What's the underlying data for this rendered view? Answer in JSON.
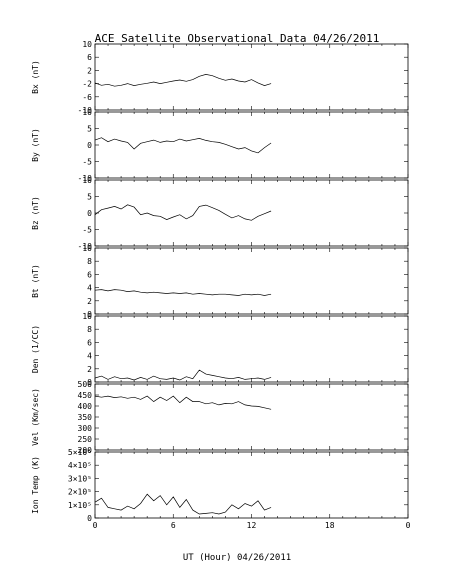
{
  "chart_data": {
    "type": "line",
    "title": "ACE Satellite Observational Data   04/26/2011",
    "xlabel": "UT (Hour)  04/26/2011",
    "x_ticks": [
      "0",
      "6",
      "12",
      "18",
      "0"
    ],
    "xlim": [
      0,
      24
    ],
    "panels": [
      {
        "ylabel": "Bx (nT)",
        "ylim": [
          -10,
          10
        ],
        "y_ticks": [
          {
            "v": 10,
            "label": "10"
          },
          {
            "v": 6,
            "label": "6"
          },
          {
            "v": 2,
            "label": "2"
          },
          {
            "v": -2,
            "label": "-2"
          },
          {
            "v": -6,
            "label": "-6"
          },
          {
            "v": -10,
            "label": "-10"
          }
        ],
        "x": [
          0,
          0.5,
          1,
          1.5,
          2,
          2.5,
          3,
          3.5,
          4,
          4.5,
          5,
          5.5,
          6,
          6.5,
          7,
          7.5,
          8,
          8.5,
          9,
          9.5,
          10,
          10.5,
          11,
          11.5,
          12,
          12.5,
          13,
          13.5
        ],
        "y": [
          -1.8,
          -2.5,
          -2.2,
          -2.8,
          -2.5,
          -2.0,
          -2.6,
          -2.2,
          -1.9,
          -1.5,
          -2.0,
          -1.6,
          -1.2,
          -0.9,
          -1.3,
          -0.8,
          0.2,
          0.8,
          0.4,
          -0.4,
          -1.0,
          -0.6,
          -1.2,
          -1.5,
          -0.8,
          -1.8,
          -2.6,
          -2.0
        ]
      },
      {
        "ylabel": "By (nT)",
        "ylim": [
          -10,
          10
        ],
        "y_ticks": [
          {
            "v": 10,
            "label": "10"
          },
          {
            "v": 5,
            "label": "5"
          },
          {
            "v": 0,
            "label": "0"
          },
          {
            "v": -5,
            "label": "-5"
          },
          {
            "v": -10,
            "label": "-10"
          }
        ],
        "x": [
          0,
          0.5,
          1,
          1.5,
          2,
          2.5,
          3,
          3.5,
          4,
          4.5,
          5,
          5.5,
          6,
          6.5,
          7,
          7.5,
          8,
          8.5,
          9,
          9.5,
          10,
          10.5,
          11,
          11.5,
          12,
          12.5,
          13,
          13.5
        ],
        "y": [
          1.5,
          2.2,
          1.0,
          1.8,
          1.2,
          0.8,
          -1.2,
          0.5,
          1.0,
          1.5,
          0.8,
          1.2,
          1.0,
          1.8,
          1.2,
          1.6,
          2.0,
          1.4,
          1.0,
          0.8,
          0.2,
          -0.5,
          -1.2,
          -0.8,
          -1.8,
          -2.4,
          -0.8,
          0.6
        ]
      },
      {
        "ylabel": "Bz (nT)",
        "ylim": [
          -10,
          10
        ],
        "y_ticks": [
          {
            "v": 10,
            "label": "10"
          },
          {
            "v": 5,
            "label": "5"
          },
          {
            "v": 0,
            "label": "0"
          },
          {
            "v": -5,
            "label": "-5"
          },
          {
            "v": -10,
            "label": "-10"
          }
        ],
        "x": [
          0,
          0.5,
          1,
          1.5,
          2,
          2.5,
          3,
          3.5,
          4,
          4.5,
          5,
          5.5,
          6,
          6.5,
          7,
          7.5,
          8,
          8.5,
          9,
          9.5,
          10,
          10.5,
          11,
          11.5,
          12,
          12.5,
          13,
          13.5
        ],
        "y": [
          -0.5,
          1.0,
          1.5,
          2.0,
          1.2,
          2.5,
          1.8,
          -0.5,
          0.0,
          -0.8,
          -1.0,
          -2.0,
          -1.2,
          -0.5,
          -1.8,
          -0.8,
          2.0,
          2.4,
          1.6,
          0.8,
          -0.4,
          -1.5,
          -0.8,
          -1.8,
          -2.2,
          -1.0,
          -0.2,
          0.6
        ]
      },
      {
        "ylabel": "Bt (nT)",
        "ylim": [
          0,
          10
        ],
        "y_ticks": [
          {
            "v": 10,
            "label": "10"
          },
          {
            "v": 8,
            "label": "8"
          },
          {
            "v": 6,
            "label": "6"
          },
          {
            "v": 4,
            "label": "4"
          },
          {
            "v": 2,
            "label": "2"
          },
          {
            "v": 0,
            "label": "0"
          }
        ],
        "x": [
          0,
          0.5,
          1,
          1.5,
          2,
          2.5,
          3,
          3.5,
          4,
          4.5,
          5,
          5.5,
          6,
          6.5,
          7,
          7.5,
          8,
          8.5,
          9,
          9.5,
          10,
          10.5,
          11,
          11.5,
          12,
          12.5,
          13,
          13.5
        ],
        "y": [
          3.6,
          3.7,
          3.5,
          3.7,
          3.6,
          3.4,
          3.5,
          3.3,
          3.2,
          3.3,
          3.2,
          3.1,
          3.2,
          3.1,
          3.2,
          3.0,
          3.1,
          3.0,
          2.9,
          3.0,
          3.0,
          2.9,
          2.8,
          3.0,
          2.9,
          3.0,
          2.8,
          3.0
        ]
      },
      {
        "ylabel": "Den (1/CC)",
        "ylim": [
          0,
          10
        ],
        "y_ticks": [
          {
            "v": 10,
            "label": "10"
          },
          {
            "v": 8,
            "label": "8"
          },
          {
            "v": 6,
            "label": "6"
          },
          {
            "v": 4,
            "label": "4"
          },
          {
            "v": 2,
            "label": "2"
          },
          {
            "v": 0,
            "label": "0"
          }
        ],
        "x": [
          0,
          0.5,
          1,
          1.5,
          2,
          2.5,
          3,
          3.5,
          4,
          4.5,
          5,
          5.5,
          6,
          6.5,
          7,
          7.5,
          8,
          8.5,
          9,
          9.5,
          10,
          10.5,
          11,
          11.5,
          12,
          12.5,
          13,
          13.5
        ],
        "y": [
          0.6,
          0.9,
          0.4,
          0.8,
          0.5,
          0.6,
          0.3,
          0.7,
          0.4,
          0.9,
          0.5,
          0.4,
          0.6,
          0.3,
          0.8,
          0.5,
          1.8,
          1.2,
          1.0,
          0.8,
          0.6,
          0.5,
          0.7,
          0.4,
          0.5,
          0.6,
          0.4,
          0.7
        ]
      },
      {
        "ylabel": "Vel (Km/sec)",
        "ylim": [
          200,
          500
        ],
        "y_ticks": [
          {
            "v": 500,
            "label": "500"
          },
          {
            "v": 450,
            "label": "450"
          },
          {
            "v": 400,
            "label": "400"
          },
          {
            "v": 350,
            "label": "350"
          },
          {
            "v": 300,
            "label": "300"
          },
          {
            "v": 250,
            "label": "250"
          },
          {
            "v": 200,
            "label": "200"
          }
        ],
        "x": [
          0,
          0.5,
          1,
          1.5,
          2,
          2.5,
          3,
          3.5,
          4,
          4.5,
          5,
          5.5,
          6,
          6.5,
          7,
          7.5,
          8,
          8.5,
          9,
          9.5,
          10,
          10.5,
          11,
          11.5,
          12,
          12.5,
          13,
          13.5
        ],
        "y": [
          445,
          440,
          445,
          438,
          442,
          435,
          440,
          430,
          445,
          420,
          440,
          425,
          445,
          415,
          440,
          420,
          420,
          410,
          415,
          405,
          412,
          410,
          420,
          405,
          400,
          398,
          392,
          385
        ]
      },
      {
        "ylabel": "Ion Temp (K)",
        "ylim": [
          0,
          500000
        ],
        "y_ticks": [
          {
            "v": 500000,
            "label": "5×10⁵"
          },
          {
            "v": 400000,
            "label": "4×10⁵"
          },
          {
            "v": 300000,
            "label": "3×10⁵"
          },
          {
            "v": 200000,
            "label": "2×10⁵"
          },
          {
            "v": 100000,
            "label": "1×10⁵"
          },
          {
            "v": 0,
            "label": "0"
          }
        ],
        "x": [
          0,
          0.5,
          1,
          1.5,
          2,
          2.5,
          3,
          3.5,
          4,
          4.5,
          5,
          5.5,
          6,
          6.5,
          7,
          7.5,
          8,
          8.5,
          9,
          9.5,
          10,
          10.5,
          11,
          11.5,
          12,
          12.5,
          13,
          13.5
        ],
        "y": [
          120000,
          150000,
          80000,
          70000,
          60000,
          90000,
          70000,
          110000,
          180000,
          130000,
          170000,
          100000,
          160000,
          80000,
          140000,
          60000,
          30000,
          35000,
          40000,
          30000,
          45000,
          100000,
          70000,
          110000,
          90000,
          130000,
          60000,
          80000
        ]
      }
    ]
  }
}
